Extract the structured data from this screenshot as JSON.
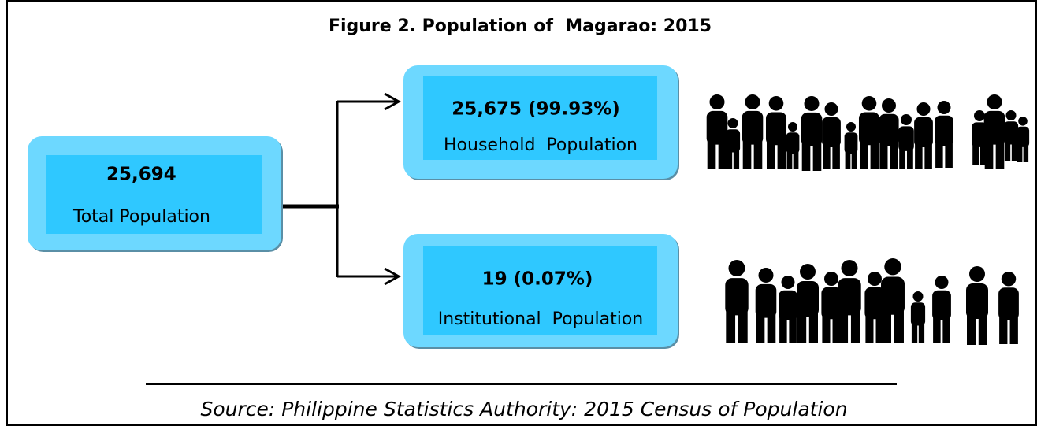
{
  "title": "Figure 2. Population of  Magarao: 2015",
  "nodes": [
    {
      "value": "25,694",
      "label": "Total Population"
    },
    {
      "value": "25,675 (99.93%)",
      "label": "Household  Population"
    },
    {
      "value": "19 (0.07%)",
      "label": "Institutional  Population"
    }
  ],
  "source": "Source: Philippine Statistics Authority: 2015 Census of Population"
}
